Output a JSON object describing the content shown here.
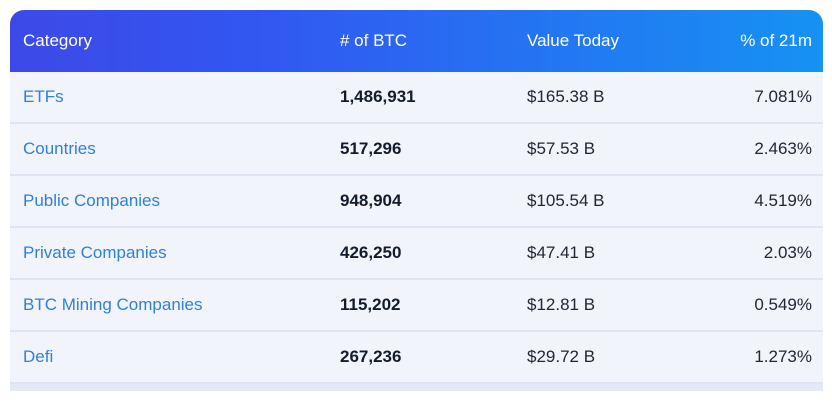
{
  "table": {
    "columns": {
      "category": "Category",
      "btc": "# of BTC",
      "value": "Value Today",
      "pct": "% of 21m"
    },
    "rows": [
      {
        "category": "ETFs",
        "btc": "1,486,931",
        "value": "$165.38 B",
        "pct": "7.081%"
      },
      {
        "category": "Countries",
        "btc": "517,296",
        "value": "$57.53 B",
        "pct": "2.463%"
      },
      {
        "category": "Public Companies",
        "btc": "948,904",
        "value": "$105.54 B",
        "pct": "4.519%"
      },
      {
        "category": "Private Companies",
        "btc": "426,250",
        "value": "$47.41 B",
        "pct": "2.03%"
      },
      {
        "category": "BTC Mining Companies",
        "btc": "115,202",
        "value": "$12.81 B",
        "pct": "0.549%"
      },
      {
        "category": "Defi",
        "btc": "267,236",
        "value": "$29.72 B",
        "pct": "1.273%"
      }
    ],
    "colors": {
      "header_gradient_left": "#3d49e6",
      "header_gradient_right": "#1692f3",
      "row_background": "#f2f4fb",
      "row_divider": "#dfe4f3",
      "category_link": "#2f80d9",
      "btc_number": "#131b2c",
      "body_text": "#202636"
    }
  }
}
